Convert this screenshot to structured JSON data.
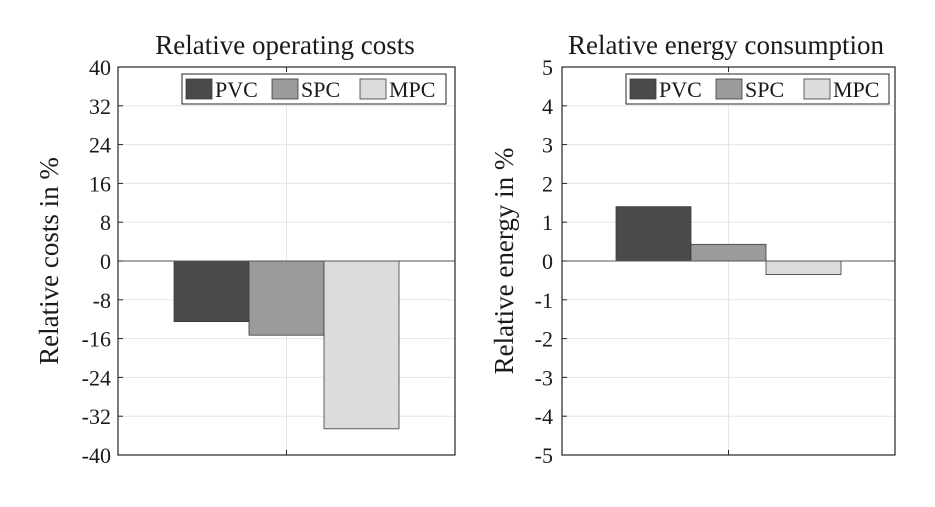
{
  "colors": {
    "PVC": "#4a4a4a",
    "SPC": "#9b9b9b",
    "MPC": "#dcdcdc",
    "grid": "#e6e6e6",
    "axis": "#262626"
  },
  "chart_data": [
    {
      "type": "bar",
      "title": "Relative operating costs",
      "xlabel": "",
      "ylabel": "Relative costs in %",
      "ylim": [
        -40,
        40
      ],
      "yticks": [
        40,
        32,
        24,
        16,
        8,
        0,
        -8,
        -16,
        -24,
        -32,
        -40
      ],
      "ytick_labels": [
        "40",
        "32",
        "24",
        "16",
        "8",
        "0",
        "-8",
        "-16",
        "-24",
        "-32",
        "-40"
      ],
      "grid": true,
      "legend": {
        "position": "top-right",
        "entries": [
          "PVC",
          "SPC",
          "MPC"
        ]
      },
      "series": [
        {
          "name": "PVC",
          "values": [
            -12.5
          ]
        },
        {
          "name": "SPC",
          "values": [
            -15.3
          ]
        },
        {
          "name": "MPC",
          "values": [
            -34.6
          ]
        }
      ]
    },
    {
      "type": "bar",
      "title": "Relative energy consumption",
      "xlabel": "",
      "ylabel": "Relative energy in %",
      "ylim": [
        -5,
        5
      ],
      "yticks": [
        5,
        4,
        3,
        2,
        1,
        0,
        -1,
        -2,
        -3,
        -4,
        -5
      ],
      "ytick_labels": [
        "5",
        "4",
        "3",
        "2",
        "1",
        "0",
        "-1",
        "-2",
        "-3",
        "-4",
        "-5"
      ],
      "grid": true,
      "legend": {
        "position": "top-right",
        "entries": [
          "PVC",
          "SPC",
          "MPC"
        ]
      },
      "series": [
        {
          "name": "PVC",
          "values": [
            1.4
          ]
        },
        {
          "name": "SPC",
          "values": [
            0.43
          ]
        },
        {
          "name": "MPC",
          "values": [
            -0.35
          ]
        }
      ]
    }
  ]
}
